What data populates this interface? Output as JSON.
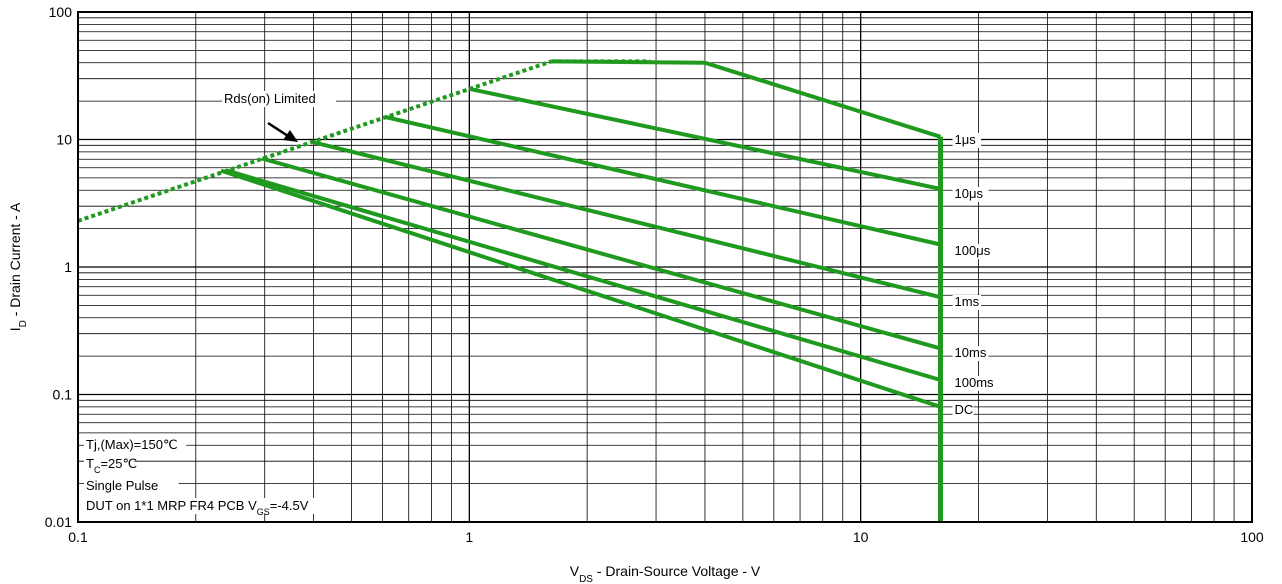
{
  "chart_data": {
    "type": "line",
    "x_scale": "log",
    "y_scale": "log",
    "xlim": [
      0.1,
      100
    ],
    "ylim": [
      0.01,
      100
    ],
    "grid": true,
    "x_ticks": [
      "0.1",
      "1",
      "10",
      "100"
    ],
    "y_ticks": [
      "100",
      "10",
      "1",
      "0.1",
      "0.01"
    ],
    "xlabel": {
      "pre": "V",
      "sub": "DS",
      "post": " - Drain-Source Voltage - V"
    },
    "ylabel": {
      "pre": "I",
      "sub": "D",
      "post": " - Drain Current - A"
    },
    "line_color": "#1f9a1f",
    "rds_limit": {
      "label": "Rds(on) Limited",
      "x": [
        0.1,
        1.62
      ],
      "y": [
        2.3,
        41
      ],
      "style": "dotted"
    },
    "max_current_dotted": {
      "x": [
        1.62,
        2.9
      ],
      "y": [
        41,
        41
      ]
    },
    "vds_limit": {
      "x": [
        16,
        16
      ],
      "y": [
        0.01,
        10.5
      ]
    },
    "series": [
      {
        "name": "1μs",
        "x": [
          1.62,
          4.0,
          16
        ],
        "y": [
          41,
          40,
          10.5
        ]
      },
      {
        "name": "10μs",
        "x": [
          1.0,
          16
        ],
        "y": [
          25,
          4.1
        ]
      },
      {
        "name": "100μs",
        "x": [
          0.61,
          16
        ],
        "y": [
          15,
          1.5
        ]
      },
      {
        "name": "1ms",
        "x": [
          0.4,
          16
        ],
        "y": [
          9.5,
          0.58
        ]
      },
      {
        "name": "10ms",
        "x": [
          0.295,
          16
        ],
        "y": [
          7.1,
          0.23
        ]
      },
      {
        "name": "100ms",
        "x": [
          0.24,
          16
        ],
        "y": [
          5.7,
          0.13
        ]
      },
      {
        "name": "DC",
        "x": [
          0.232,
          16
        ],
        "y": [
          5.7,
          0.08
        ]
      }
    ],
    "annotations": [
      {
        "pre": "Tj,(Max)=150℃",
        "sub": "",
        "post": ""
      },
      {
        "pre": "T",
        "sub": "C",
        "post": "=25℃"
      },
      {
        "pre": "Single Pulse",
        "sub": "",
        "post": ""
      },
      {
        "pre": "DUT on 1*1 MRP FR4 PCB V",
        "sub": "GS",
        "post": "=-4.5V"
      }
    ]
  }
}
